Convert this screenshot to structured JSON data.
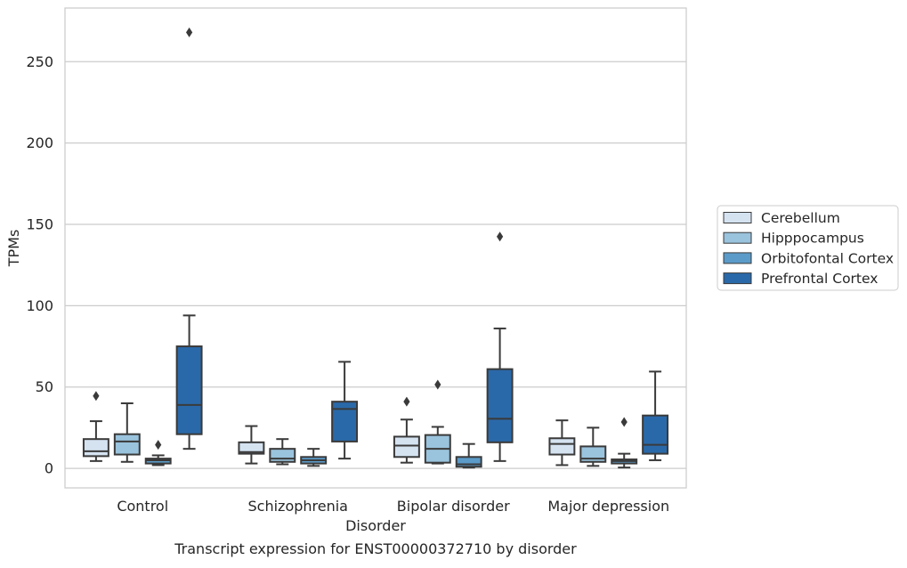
{
  "chart_data": {
    "type": "box",
    "title": "",
    "caption": "Transcript expression for ENST00000372710 by disorder",
    "xlabel": "Disorder",
    "ylabel": "TPMs",
    "ylim": [
      -12,
      283
    ],
    "yticks": [
      0,
      50,
      100,
      150,
      200,
      250
    ],
    "grid": "horizontal",
    "legend_position": "right",
    "categories": [
      "Control",
      "Schizophrenia",
      "Bipolar disorder",
      "Major depression"
    ],
    "series": [
      {
        "name": "Cerebellum",
        "color": "#d5e3f1",
        "boxes": [
          {
            "category": "Control",
            "whisker_low": 4.5,
            "q1": 7.5,
            "median": 10.5,
            "q3": 18,
            "whisker_high": 29,
            "outliers": [
              44.5
            ]
          },
          {
            "category": "Schizophrenia",
            "whisker_low": 3,
            "q1": 9,
            "median": 10,
            "q3": 16,
            "whisker_high": 26,
            "outliers": []
          },
          {
            "category": "Bipolar disorder",
            "whisker_low": 3.5,
            "q1": 7,
            "median": 14,
            "q3": 19.5,
            "whisker_high": 30,
            "outliers": [
              41
            ]
          },
          {
            "category": "Major depression",
            "whisker_low": 2,
            "q1": 8.5,
            "median": 15,
            "q3": 18.5,
            "whisker_high": 29.5,
            "outliers": []
          }
        ]
      },
      {
        "name": "Hipppocampus",
        "color": "#9ac3dd",
        "boxes": [
          {
            "category": "Control",
            "whisker_low": 4,
            "q1": 8.5,
            "median": 16.5,
            "q3": 21,
            "whisker_high": 40,
            "outliers": []
          },
          {
            "category": "Schizophrenia",
            "whisker_low": 2.5,
            "q1": 4,
            "median": 6,
            "q3": 12,
            "whisker_high": 18,
            "outliers": []
          },
          {
            "category": "Bipolar disorder",
            "whisker_low": 3,
            "q1": 3.5,
            "median": 12,
            "q3": 20.5,
            "whisker_high": 25.5,
            "outliers": [
              51.5
            ]
          },
          {
            "category": "Major depression",
            "whisker_low": 1.5,
            "q1": 4,
            "median": 6,
            "q3": 13.5,
            "whisker_high": 25,
            "outliers": []
          }
        ]
      },
      {
        "name": "Orbitofontal Cortex",
        "color": "#5b9bc9",
        "boxes": [
          {
            "category": "Control",
            "whisker_low": 2,
            "q1": 3,
            "median": 5,
            "q3": 6,
            "whisker_high": 8,
            "outliers": [
              14.5
            ]
          },
          {
            "category": "Schizophrenia",
            "whisker_low": 1.5,
            "q1": 3,
            "median": 5,
            "q3": 7,
            "whisker_high": 12,
            "outliers": []
          },
          {
            "category": "Bipolar disorder",
            "whisker_low": 0.5,
            "q1": 1,
            "median": 2.5,
            "q3": 7,
            "whisker_high": 15,
            "outliers": []
          },
          {
            "category": "Major depression",
            "whisker_low": 0.5,
            "q1": 3,
            "median": 4.5,
            "q3": 5.5,
            "whisker_high": 9,
            "outliers": [
              28.5
            ]
          }
        ]
      },
      {
        "name": "Prefrontal Cortex",
        "color": "#2a69a9",
        "boxes": [
          {
            "category": "Control",
            "whisker_low": 12,
            "q1": 21,
            "median": 39,
            "q3": 75,
            "whisker_high": 94,
            "outliers": [
              268
            ]
          },
          {
            "category": "Schizophrenia",
            "whisker_low": 6,
            "q1": 16.5,
            "median": 36.5,
            "q3": 41,
            "whisker_high": 65.5,
            "outliers": []
          },
          {
            "category": "Bipolar disorder",
            "whisker_low": 4.5,
            "q1": 16,
            "median": 30.5,
            "q3": 61,
            "whisker_high": 86,
            "outliers": [
              142.5
            ]
          },
          {
            "category": "Major depression",
            "whisker_low": 5,
            "q1": 9,
            "median": 14.5,
            "q3": 32.5,
            "whisker_high": 59.5,
            "outliers": []
          }
        ]
      }
    ]
  }
}
